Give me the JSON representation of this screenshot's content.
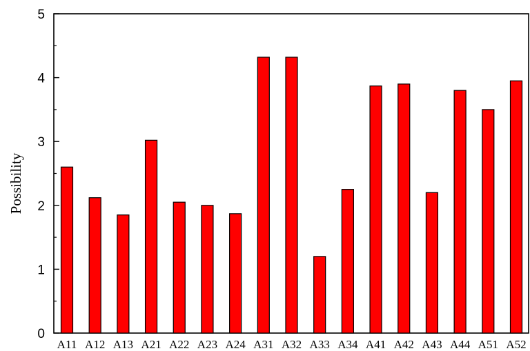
{
  "chart_data": {
    "type": "bar",
    "title": "",
    "xlabel": "",
    "ylabel": "Possibility",
    "ylim": [
      0,
      5
    ],
    "y_ticks": [
      0,
      1,
      2,
      3,
      4,
      5
    ],
    "y_tick_labels": [
      "0",
      "1",
      "2",
      "3",
      "4",
      "5"
    ],
    "grid": false,
    "legend": "none",
    "bar_color": "#ff0000",
    "categories": [
      "A11",
      "A12",
      "A13",
      "A21",
      "A22",
      "A23",
      "A24",
      "A31",
      "A32",
      "A33",
      "A34",
      "A41",
      "A42",
      "A43",
      "A44",
      "A51",
      "A52"
    ],
    "values": [
      2.6,
      2.12,
      1.85,
      3.02,
      2.05,
      2.0,
      1.87,
      4.32,
      4.32,
      1.2,
      2.25,
      3.87,
      3.9,
      2.2,
      3.8,
      3.5,
      3.95
    ]
  }
}
